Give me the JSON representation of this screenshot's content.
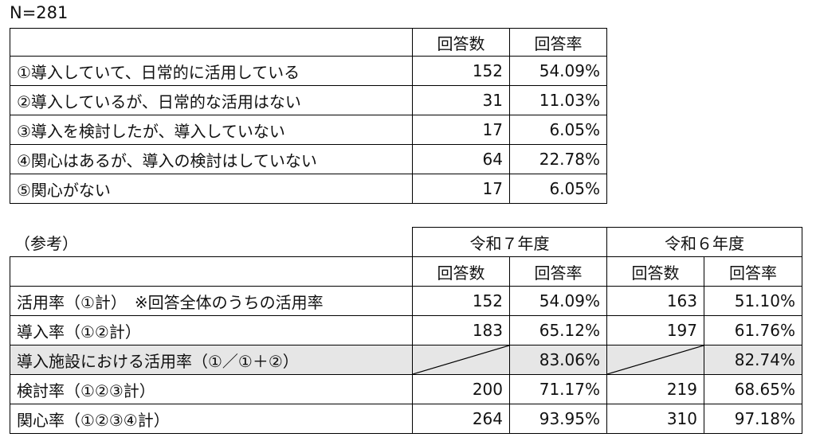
{
  "sample_size": "N=281",
  "summary": {
    "headers": [
      "回答数",
      "回答率"
    ],
    "rows": [
      {
        "label": "①導入していて、日常的に活用している",
        "count": "152",
        "rate": "54.09%"
      },
      {
        "label": "②導入しているが、日常的な活用はない",
        "count": "31",
        "rate": "11.03%"
      },
      {
        "label": "③導入を検討したが、導入していない",
        "count": "17",
        "rate": "6.05%"
      },
      {
        "label": "④関心はあるが、導入の検討はしていない",
        "count": "64",
        "rate": "22.78%"
      },
      {
        "label": "⑤関心がない",
        "count": "17",
        "rate": "6.05%"
      }
    ]
  },
  "reference": {
    "title": "（参考）",
    "years": [
      "令和７年度",
      "令和６年度"
    ],
    "headers": [
      "回答数",
      "回答率",
      "回答数",
      "回答率"
    ],
    "rows": [
      {
        "label": "活用率（①計）　※回答全体のうちの活用率",
        "r7_count": "152",
        "r7_rate": "54.09%",
        "r6_count": "163",
        "r6_rate": "51.10%"
      },
      {
        "label": "導入率（①②計）",
        "r7_count": "183",
        "r7_rate": "65.12%",
        "r6_count": "197",
        "r6_rate": "61.76%"
      },
      {
        "label": "導入施設における活用率（①／①＋②）",
        "r7_count": "",
        "r7_rate": "83.06%",
        "r6_count": "",
        "r6_rate": "82.74%"
      },
      {
        "label": "検討率（①②③計）",
        "r7_count": "200",
        "r7_rate": "71.17%",
        "r6_count": "219",
        "r6_rate": "68.65%"
      },
      {
        "label": "関心率（①②③④計）",
        "r7_count": "264",
        "r7_rate": "93.95%",
        "r6_count": "310",
        "r6_rate": "97.18%"
      }
    ]
  }
}
